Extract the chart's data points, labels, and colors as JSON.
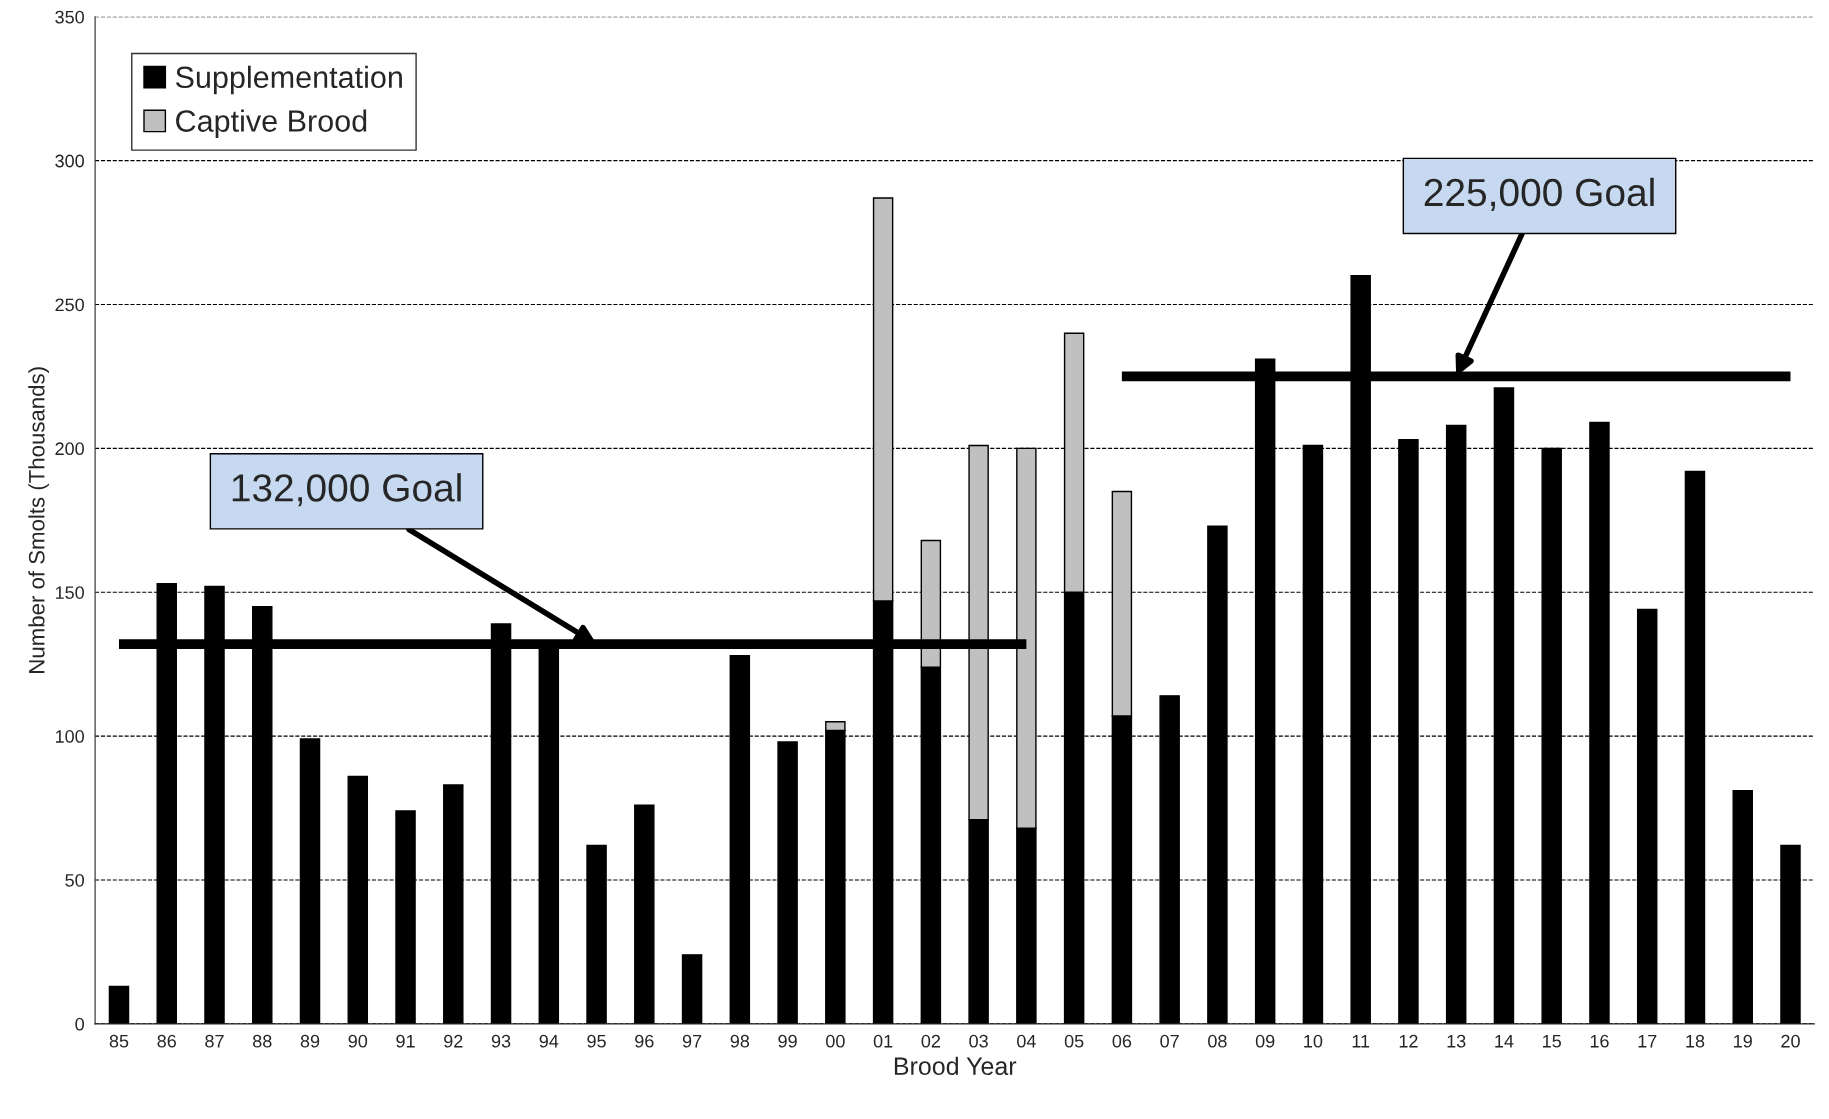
{
  "chart_data": {
    "type": "bar",
    "stacked": true,
    "xlabel": "Brood Year",
    "ylabel": "Number of Smolts (Thousands)",
    "categories": [
      "85",
      "86",
      "87",
      "88",
      "89",
      "90",
      "91",
      "92",
      "93",
      "94",
      "95",
      "96",
      "97",
      "98",
      "99",
      "00",
      "01",
      "02",
      "03",
      "04",
      "05",
      "06",
      "07",
      "08",
      "09",
      "10",
      "11",
      "12",
      "13",
      "14",
      "15",
      "16",
      "17",
      "18",
      "19",
      "20"
    ],
    "series": [
      {
        "name": "Supplementation",
        "color": "#000000",
        "values": [
          13,
          153,
          152,
          145,
          99,
          86,
          74,
          83,
          139,
          131,
          62,
          76,
          24,
          128,
          98,
          102,
          147,
          124,
          71,
          68,
          150,
          107,
          114,
          173,
          231,
          201,
          260,
          203,
          208,
          221,
          200,
          209,
          144,
          192,
          81,
          62
        ]
      },
      {
        "name": "Captive Brood",
        "color": "#c0c0c0",
        "values": [
          null,
          null,
          null,
          null,
          null,
          null,
          null,
          null,
          null,
          null,
          null,
          null,
          null,
          null,
          null,
          3,
          140,
          44,
          130,
          132,
          90,
          78,
          null,
          null,
          null,
          null,
          null,
          null,
          null,
          null,
          null,
          null,
          null,
          null,
          null,
          null
        ]
      },
      {
        "type": "line",
        "color": "#000000",
        "values": [
          132,
          132,
          132,
          132,
          132,
          132,
          132,
          132,
          132,
          132,
          132,
          132,
          132,
          132,
          132,
          132,
          132,
          132,
          132,
          132,
          null,
          null,
          null,
          null,
          null,
          null,
          null,
          null,
          null,
          null,
          null,
          null,
          null,
          null,
          null,
          null
        ]
      },
      {
        "type": "line",
        "color": "#000000",
        "values": [
          null,
          null,
          null,
          null,
          null,
          null,
          null,
          null,
          null,
          null,
          null,
          null,
          null,
          null,
          null,
          null,
          null,
          null,
          null,
          null,
          null,
          225,
          225,
          225,
          225,
          225,
          225,
          225,
          225,
          225,
          225,
          225,
          225,
          225,
          225,
          225
        ]
      }
    ],
    "annotations": [
      {
        "text": "132,000 Goal",
        "x": "95",
        "y": 132
      },
      {
        "text": "225,000 Goal",
        "x": "13",
        "y": 225
      }
    ],
    "ylim": [
      0,
      350
    ],
    "yticks": [
      0,
      50,
      100,
      150,
      200,
      250,
      300,
      350
    ],
    "grid": "y",
    "legend": "top left"
  }
}
